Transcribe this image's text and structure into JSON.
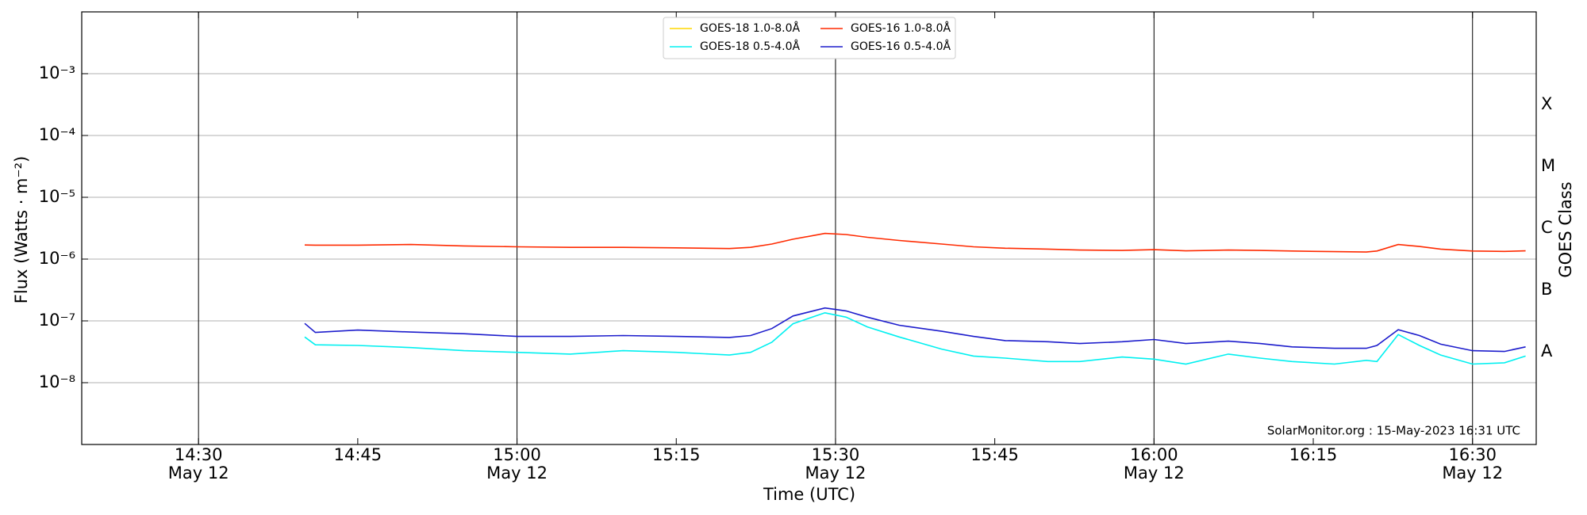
{
  "chart_data": {
    "type": "line",
    "x_label": "Time (UTC)",
    "y_label": "Flux (Watts · m⁻²)",
    "y2_label": "GOES Class",
    "annotation": "SolarMonitor.org : 15-May-2023 16:31 UTC",
    "log_y": true,
    "grid": true,
    "legend": "top-center",
    "xlim": [
      "14:19",
      "16:36"
    ],
    "xticks": [
      {
        "value": "14:30",
        "label": "14:30",
        "date": "May 12"
      },
      {
        "value": "14:45",
        "label": "14:45"
      },
      {
        "value": "15:00",
        "label": "15:00",
        "date": "May 12"
      },
      {
        "value": "15:15",
        "label": "15:15"
      },
      {
        "value": "15:30",
        "label": "15:30",
        "date": "May 12"
      },
      {
        "value": "15:45",
        "label": "15:45"
      },
      {
        "value": "16:00",
        "label": "16:00",
        "date": "May 12"
      },
      {
        "value": "16:15",
        "label": "16:15"
      },
      {
        "value": "16:30",
        "label": "16:30",
        "date": "May 12"
      }
    ],
    "ylim": [
      1e-09,
      0.01
    ],
    "yticks": [
      {
        "value": 1e-08,
        "label": "10⁻⁸"
      },
      {
        "value": 1e-07,
        "label": "10⁻⁷"
      },
      {
        "value": 1e-06,
        "label": "10⁻⁶"
      },
      {
        "value": 1e-05,
        "label": "10⁻⁵"
      },
      {
        "value": 0.0001,
        "label": "10⁻⁴"
      },
      {
        "value": 0.001,
        "label": "10⁻³"
      }
    ],
    "y2lim": [
      1e-09,
      0.01
    ],
    "y2ticks": [
      {
        "value": 3.16e-08,
        "label": "A"
      },
      {
        "value": 3.16e-07,
        "label": "B"
      },
      {
        "value": 3.16e-06,
        "label": "C"
      },
      {
        "value": 3.16e-05,
        "label": "M"
      },
      {
        "value": 0.000316,
        "label": "X"
      }
    ],
    "x": [
      "14:40",
      "14:41",
      "14:45",
      "14:50",
      "14:55",
      "15:00",
      "15:05",
      "15:10",
      "15:15",
      "15:20",
      "15:22",
      "15:24",
      "15:26",
      "15:29",
      "15:31",
      "15:33",
      "15:36",
      "15:40",
      "15:43",
      "15:46",
      "15:50",
      "15:53",
      "15:57",
      "16:00",
      "16:03",
      "16:07",
      "16:10",
      "16:13",
      "16:17",
      "16:20",
      "16:21",
      "16:23",
      "16:25",
      "16:27",
      "16:30",
      "16:33",
      "16:35"
    ],
    "series": [
      {
        "name": "GOES-18 1.0-8.0Å",
        "color": "#ffd700",
        "values": [
          null,
          null,
          null,
          null,
          null,
          null,
          null,
          null,
          null,
          null,
          null,
          null,
          null,
          null,
          null,
          null,
          null,
          null,
          null,
          null,
          null,
          null,
          null,
          null,
          null,
          null,
          null,
          null,
          null,
          null,
          null,
          null,
          null,
          null,
          null,
          null,
          null
        ]
      },
      {
        "name": "GOES-18 0.5-4.0Å",
        "color": "#00f0f0",
        "values": [
          5.5e-08,
          4.1e-08,
          4e-08,
          3.7e-08,
          3.3e-08,
          3.1e-08,
          2.9e-08,
          3.3e-08,
          3.1e-08,
          2.8e-08,
          3.1e-08,
          4.5e-08,
          9e-08,
          1.35e-07,
          1.15e-07,
          8e-08,
          5.5e-08,
          3.5e-08,
          2.7e-08,
          2.5e-08,
          2.2e-08,
          2.2e-08,
          2.6e-08,
          2.4e-08,
          2e-08,
          2.9e-08,
          2.5e-08,
          2.2e-08,
          2e-08,
          2.3e-08,
          2.2e-08,
          6e-08,
          4e-08,
          2.8e-08,
          2e-08,
          2.1e-08,
          2.7e-08
        ]
      },
      {
        "name": "GOES-16 1.0-8.0Å",
        "color": "#ff2a00",
        "values": [
          1.69e-06,
          1.68e-06,
          1.68e-06,
          1.72e-06,
          1.63e-06,
          1.58e-06,
          1.55e-06,
          1.55e-06,
          1.52e-06,
          1.48e-06,
          1.55e-06,
          1.75e-06,
          2.1e-06,
          2.6e-06,
          2.5e-06,
          2.25e-06,
          2e-06,
          1.75e-06,
          1.58e-06,
          1.5e-06,
          1.45e-06,
          1.4e-06,
          1.38e-06,
          1.42e-06,
          1.36e-06,
          1.4e-06,
          1.38e-06,
          1.35e-06,
          1.32e-06,
          1.3e-06,
          1.35e-06,
          1.72e-06,
          1.6e-06,
          1.45e-06,
          1.35e-06,
          1.33e-06,
          1.36e-06
        ]
      },
      {
        "name": "GOES-16 0.5-4.0Å",
        "color": "#1c1ccc",
        "values": [
          9.1e-08,
          6.5e-08,
          7.1e-08,
          6.6e-08,
          6.2e-08,
          5.6e-08,
          5.6e-08,
          5.8e-08,
          5.6e-08,
          5.4e-08,
          5.8e-08,
          7.5e-08,
          1.2e-07,
          1.62e-07,
          1.45e-07,
          1.15e-07,
          8.5e-08,
          6.8e-08,
          5.6e-08,
          4.8e-08,
          4.6e-08,
          4.3e-08,
          4.6e-08,
          5e-08,
          4.3e-08,
          4.7e-08,
          4.3e-08,
          3.8e-08,
          3.6e-08,
          3.6e-08,
          4e-08,
          7.2e-08,
          5.8e-08,
          4.2e-08,
          3.3e-08,
          3.2e-08,
          3.8e-08
        ]
      }
    ]
  }
}
